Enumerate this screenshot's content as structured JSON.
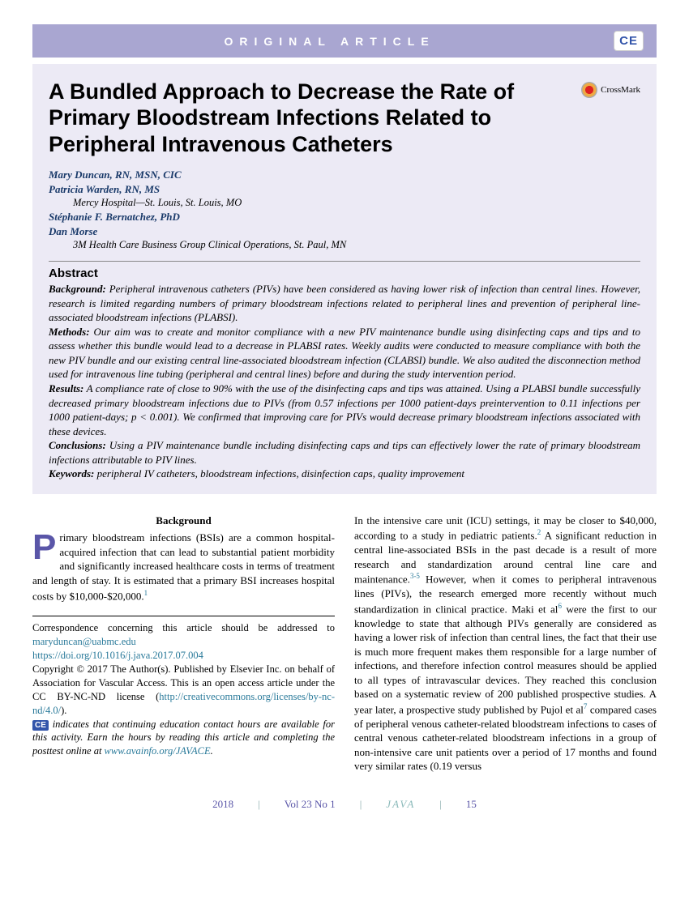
{
  "header": {
    "label": "ORIGINAL ARTICLE",
    "ce_label": "CE"
  },
  "title": "A Bundled Approach to Decrease the Rate of Primary Bloodstream Infections Related to Peripheral Intravenous Catheters",
  "crossmark": "CrossMark",
  "authors": [
    {
      "name": "Mary Duncan, RN, MSN, CIC"
    },
    {
      "name": "Patricia Warden, RN, MS"
    }
  ],
  "affiliation1": "Mercy Hospital—St. Louis, St. Louis, MO",
  "authors2": [
    {
      "name": "Stéphanie F. Bernatchez, PhD"
    },
    {
      "name": "Dan Morse"
    }
  ],
  "affiliation2": "3M Health Care Business Group Clinical Operations, St. Paul, MN",
  "abstract": {
    "heading": "Abstract",
    "background_label": "Background:",
    "background": "Peripheral intravenous catheters (PIVs) have been considered as having lower risk of infection than central lines. However, research is limited regarding numbers of primary bloodstream infections related to peripheral lines and prevention of peripheral line-associated bloodstream infections (PLABSI).",
    "methods_label": "Methods:",
    "methods": "Our aim was to create and monitor compliance with a new PIV maintenance bundle using disinfecting caps and tips and to assess whether this bundle would lead to a decrease in PLABSI rates. Weekly audits were conducted to measure compliance with both the new PIV bundle and our existing central line-associated bloodstream infection (CLABSI) bundle. We also audited the disconnection method used for intravenous line tubing (peripheral and central lines) before and during the study intervention period.",
    "results_label": "Results:",
    "results": "A compliance rate of close to 90% with the use of the disinfecting caps and tips was attained. Using a PLABSI bundle successfully decreased primary bloodstream infections due to PIVs (from 0.57 infections per 1000 patient-days preintervention to 0.11 infections per 1000 patient-days; p < 0.001). We confirmed that improving care for PIVs would decrease primary bloodstream infections associated with these devices.",
    "conclusions_label": "Conclusions:",
    "conclusions": "Using a PIV maintenance bundle including disinfecting caps and tips can effectively lower the rate of primary bloodstream infections attributable to PIV lines.",
    "keywords_label": "Keywords:",
    "keywords": "peripheral IV catheters, bloodstream infections, disinfection caps, quality improvement"
  },
  "body": {
    "section_heading": "Background",
    "dropcap": "P",
    "col1_para1": "rimary bloodstream infections (BSIs) are a common hospital-acquired infection that can lead to substantial patient morbidity and significantly increased healthcare costs in terms of treatment and length of stay. It is estimated that a primary BSI increases hospital costs by $10,000-$20,000.",
    "col2_para1": "In the intensive care unit (ICU) settings, it may be closer to $40,000, according to a study in pediatric patients.",
    "col2_para1b": " A significant reduction in central line-associated BSIs in the past decade is a result of more research and standardization around central line care and maintenance.",
    "col2_para1c": " However, when it comes to peripheral intravenous lines (PIVs), the research emerged more recently without much standardization in clinical practice. Maki et al",
    "col2_para1d": " were the first to our knowledge to state that although PIVs generally are considered as having a lower risk of infection than central lines, the fact that their use is much more frequent makes them responsible for a large number of infections, and therefore infection control measures should be applied to all types of intravascular devices. They reached this conclusion based on a systematic review of 200 published prospective studies. A year later, a prospective study published by Pujol et al",
    "col2_para1e": " compared cases of peripheral venous catheter-related bloodstream infections to cases of central venous catheter-related bloodstream infections in a group of non-intensive care unit patients over a period of 17 months and found very similar rates (0.19 versus"
  },
  "correspondence": {
    "intro": "Correspondence concerning this article should be addressed to ",
    "email": "maryduncan@uabmc.edu",
    "doi": "https://doi.org/10.1016/j.java.2017.07.004",
    "copyright": "Copyright © 2017 The Author(s). Published by Elsevier Inc. on behalf of Association for Vascular Access. This is an open access article under the CC BY-NC-ND license (",
    "license_url": "http://creativecommons.org/licenses/by-nc-nd/4.0/",
    "close_paren": ").",
    "ce_text": " indicates that continuing education contact hours are available for this activity. Earn the hours by reading this article and completing the posttest online at ",
    "ce_url": "www.avainfo.org/JAVACE",
    "period": "."
  },
  "footer": {
    "year": "2018",
    "volume": "Vol 23 No 1",
    "journal": "JAVA",
    "page": "15"
  },
  "refs": {
    "r1": "1",
    "r2": "2",
    "r35": "3-5",
    "r6": "6",
    "r7": "7"
  }
}
